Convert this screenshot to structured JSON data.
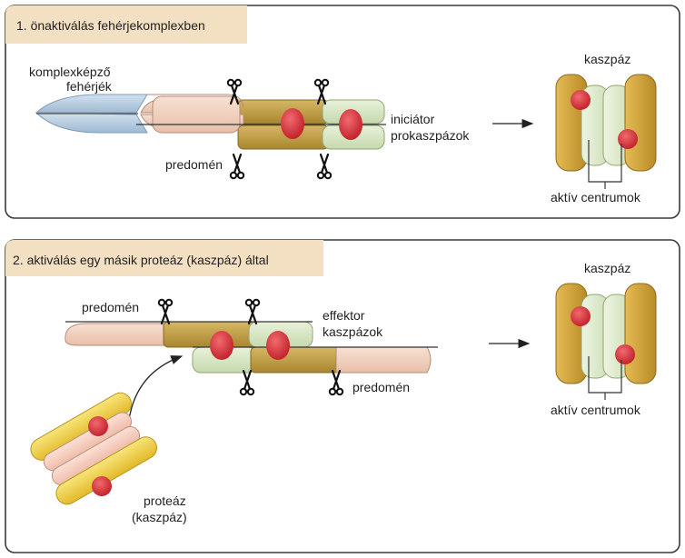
{
  "panel1": {
    "header": "1. önaktiválás fehérjekomplexben",
    "label_complex_line1": "komplexképző",
    "label_complex_line2": "fehérjék",
    "label_predomain": "predomén",
    "label_initiator_line1": "iniciátor",
    "label_initiator_line2": "prokaszpázok",
    "label_caspase": "kaszpáz",
    "label_active_centers": "aktív centrumok"
  },
  "panel2": {
    "header": "2. aktiválás egy másik proteáz (kaszpáz) által",
    "label_predomain_top": "predomén",
    "label_effector_line1": "effektor",
    "label_effector_line2": "kaszpázok",
    "label_predomain_bottom": "predomén",
    "label_protease_line1": "proteáz",
    "label_protease_line2": "(kaszpáz)",
    "label_caspase": "kaszpáz",
    "label_active_centers": "aktív centrumok"
  },
  "colors": {
    "panel_border": "#3a3a3a",
    "header_bg": "#f3dfc2",
    "blue": "#b8cde0",
    "peach": "#f1d2c0",
    "olive": "#c4a04a",
    "light_green": "#d9e8c4",
    "red": "#d8323a",
    "gold": "#d4a53a",
    "yellow": "#f0d040"
  }
}
